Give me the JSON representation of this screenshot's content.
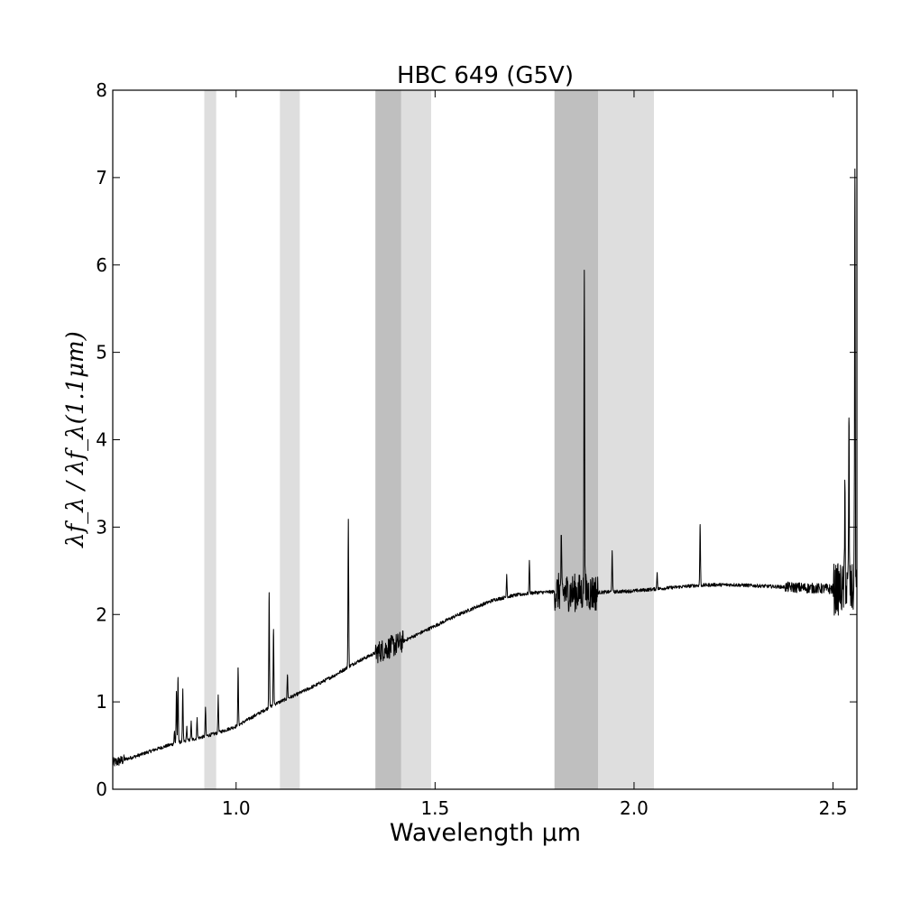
{
  "chart_data": {
    "type": "line",
    "title": "HBC 649 (G5V)",
    "xlabel": "Wavelength μm",
    "ylabel": "λf_λ / λf_λ(1.1μm)",
    "xlim": [
      0.69,
      2.56
    ],
    "ylim": [
      0,
      8
    ],
    "xticks": [
      1.0,
      1.5,
      2.0,
      2.5
    ],
    "xtick_labels": [
      "1.0",
      "1.5",
      "2.0",
      "2.5"
    ],
    "yticks": [
      0,
      1,
      2,
      3,
      4,
      5,
      6,
      7,
      8
    ],
    "ytick_labels": [
      "0",
      "1",
      "2",
      "3",
      "4",
      "5",
      "6",
      "7",
      "8"
    ],
    "grid": false,
    "shaded_bands": [
      {
        "x0": 0.92,
        "x1": 0.95,
        "shade": "light"
      },
      {
        "x0": 1.11,
        "x1": 1.16,
        "shade": "light"
      },
      {
        "x0": 1.35,
        "x1": 1.415,
        "shade": "dark"
      },
      {
        "x0": 1.415,
        "x1": 1.49,
        "shade": "light"
      },
      {
        "x0": 1.8,
        "x1": 1.91,
        "shade": "dark"
      },
      {
        "x0": 1.91,
        "x1": 2.05,
        "shade": "light"
      }
    ],
    "band_colors": {
      "light": "#dedede",
      "dark": "#bfbfbf"
    },
    "line_color": "#000000",
    "continuum": [
      [
        0.69,
        0.3
      ],
      [
        0.75,
        0.38
      ],
      [
        0.8,
        0.46
      ],
      [
        0.85,
        0.53
      ],
      [
        0.9,
        0.58
      ],
      [
        0.95,
        0.64
      ],
      [
        1.0,
        0.72
      ],
      [
        1.05,
        0.85
      ],
      [
        1.1,
        0.98
      ],
      [
        1.15,
        1.08
      ],
      [
        1.2,
        1.19
      ],
      [
        1.25,
        1.31
      ],
      [
        1.3,
        1.45
      ],
      [
        1.35,
        1.56
      ],
      [
        1.4,
        1.65
      ],
      [
        1.45,
        1.76
      ],
      [
        1.5,
        1.87
      ],
      [
        1.55,
        1.98
      ],
      [
        1.6,
        2.08
      ],
      [
        1.65,
        2.17
      ],
      [
        1.7,
        2.22
      ],
      [
        1.75,
        2.25
      ],
      [
        1.8,
        2.26
      ],
      [
        1.85,
        2.25
      ],
      [
        1.9,
        2.25
      ],
      [
        1.95,
        2.26
      ],
      [
        2.0,
        2.27
      ],
      [
        2.05,
        2.29
      ],
      [
        2.1,
        2.31
      ],
      [
        2.15,
        2.33
      ],
      [
        2.2,
        2.34
      ],
      [
        2.25,
        2.34
      ],
      [
        2.3,
        2.33
      ],
      [
        2.35,
        2.32
      ],
      [
        2.4,
        2.31
      ],
      [
        2.45,
        2.3
      ],
      [
        2.5,
        2.29
      ],
      [
        2.56,
        2.28
      ]
    ],
    "emission_lines": [
      {
        "x": 0.845,
        "peak": 0.66
      },
      {
        "x": 0.85,
        "peak": 1.12
      },
      {
        "x": 0.854,
        "peak": 1.28
      },
      {
        "x": 0.866,
        "peak": 1.14
      },
      {
        "x": 0.876,
        "peak": 0.72
      },
      {
        "x": 0.887,
        "peak": 0.77
      },
      {
        "x": 0.902,
        "peak": 0.82
      },
      {
        "x": 0.923,
        "peak": 0.94
      },
      {
        "x": 0.955,
        "peak": 1.08
      },
      {
        "x": 1.005,
        "peak": 1.39
      },
      {
        "x": 1.083,
        "peak": 2.25
      },
      {
        "x": 1.094,
        "peak": 1.83
      },
      {
        "x": 1.129,
        "peak": 1.31
      },
      {
        "x": 1.282,
        "peak": 3.09
      },
      {
        "x": 1.68,
        "peak": 2.46
      },
      {
        "x": 1.737,
        "peak": 2.62
      },
      {
        "x": 1.817,
        "peak": 2.8
      },
      {
        "x": 1.875,
        "peak": 5.94
      },
      {
        "x": 1.945,
        "peak": 2.73
      },
      {
        "x": 2.058,
        "peak": 2.48
      },
      {
        "x": 2.166,
        "peak": 3.03
      },
      {
        "x": 2.53,
        "peak": 3.48
      },
      {
        "x": 2.54,
        "peak": 4.25
      },
      {
        "x": 2.555,
        "peak": 7.1
      }
    ],
    "noise_regions": [
      {
        "x0": 0.69,
        "x1": 0.72,
        "amp": 0.06
      },
      {
        "x0": 1.35,
        "x1": 1.42,
        "amp": 0.13
      },
      {
        "x0": 1.8,
        "x1": 1.91,
        "amp": 0.22
      },
      {
        "x0": 2.38,
        "x1": 2.5,
        "amp": 0.06
      },
      {
        "x0": 2.5,
        "x1": 2.56,
        "amp": 0.3
      }
    ]
  }
}
